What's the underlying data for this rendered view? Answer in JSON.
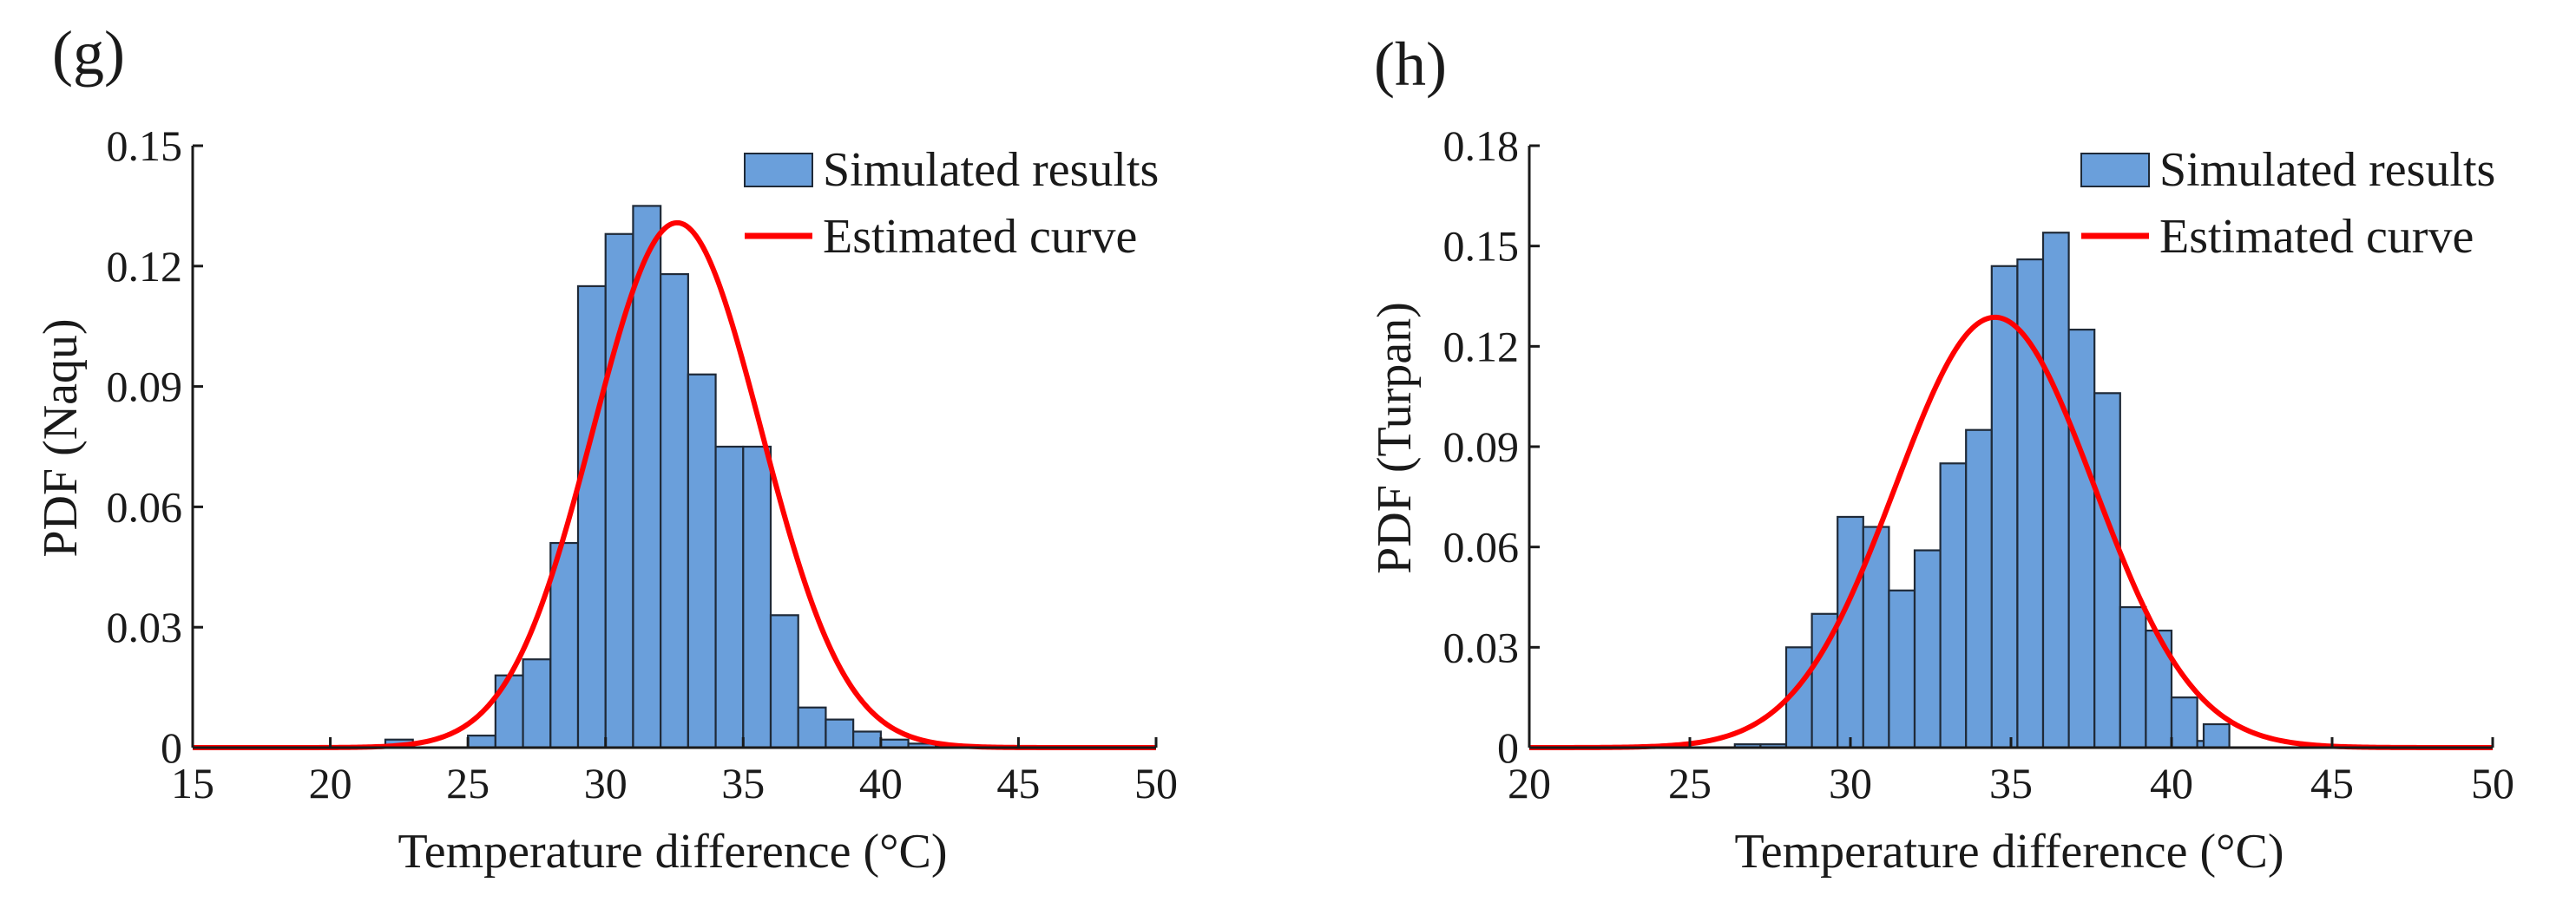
{
  "colors": {
    "bar_fill": "#6a9fdb",
    "bar_edge": "#1f2a38",
    "curve": "#ff0000",
    "axis": "#1a1a1a"
  },
  "chart_data": [
    {
      "panel_label": "(g)",
      "type": "bar",
      "title": "",
      "xlabel": "Temperature difference (°C)",
      "ylabel": "PDF (Naqu)",
      "xlim": [
        15,
        50
      ],
      "ylim": [
        0,
        0.15
      ],
      "xticks": [
        "15",
        "20",
        "25",
        "30",
        "35",
        "40",
        "45",
        "50"
      ],
      "yticks": [
        "0",
        "0.03",
        "0.06",
        "0.09",
        "0.12",
        "0.15"
      ],
      "legend_position": "top-right",
      "legend": [
        "Simulated results",
        "Estimated curve"
      ],
      "bin_width": 1,
      "bin_starts": [
        22,
        25,
        26,
        27,
        28,
        29,
        30,
        31,
        32,
        33,
        34,
        35,
        36,
        37,
        38,
        39,
        40,
        41,
        42,
        43
      ],
      "values": [
        0.002,
        0.003,
        0.018,
        0.022,
        0.051,
        0.115,
        0.128,
        0.135,
        0.118,
        0.093,
        0.075,
        0.075,
        0.033,
        0.01,
        0.007,
        0.004,
        0.002,
        0.001,
        0.0005,
        0.0005
      ],
      "curve": {
        "name": "Estimated curve",
        "distribution": "normal",
        "mean": 32.6,
        "std": 3.05
      }
    },
    {
      "panel_label": "(h)",
      "type": "bar",
      "title": "",
      "xlabel": "Temperature difference (°C)",
      "ylabel": "PDF (Turpan)",
      "xlim": [
        20,
        50
      ],
      "ylim": [
        0,
        0.18
      ],
      "xticks": [
        "20",
        "25",
        "30",
        "35",
        "40",
        "45",
        "50"
      ],
      "yticks": [
        "0",
        "0.03",
        "0.06",
        "0.09",
        "0.12",
        "0.15",
        "0.18"
      ],
      "legend_position": "top-right",
      "legend": [
        "Simulated results",
        "Estimated curve"
      ],
      "bin_width": 0.8,
      "bin_starts": [
        26.4,
        27.2,
        28.0,
        28.8,
        29.6,
        30.4,
        31.2,
        32.0,
        32.8,
        33.6,
        34.4,
        35.2,
        36.0,
        36.8,
        37.6,
        38.4,
        39.2,
        40.0,
        40.8
      ],
      "values": [
        0.001,
        0.001,
        0.03,
        0.04,
        0.069,
        0.066,
        0.047,
        0.059,
        0.085,
        0.095,
        0.144,
        0.146,
        0.154,
        0.125,
        0.106,
        0.042,
        0.035,
        0.015,
        0.002
      ],
      "extra_bins": [
        {
          "start": 41.0,
          "width": 0.8,
          "value": 0.007
        }
      ],
      "curve": {
        "name": "Estimated curve",
        "distribution": "normal",
        "mean": 34.5,
        "std": 3.1
      }
    }
  ]
}
